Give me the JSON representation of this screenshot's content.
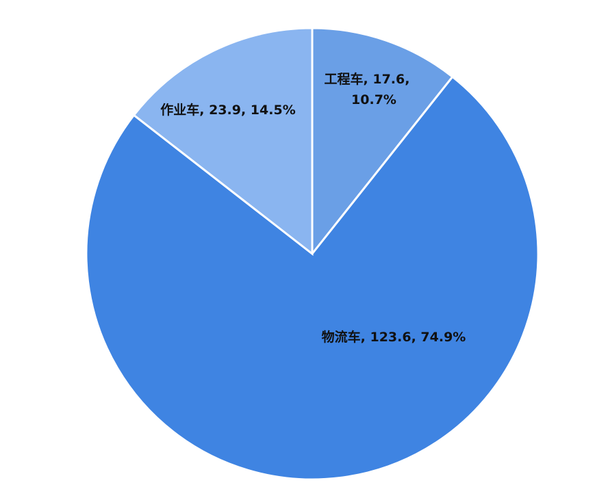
{
  "chart_data": {
    "type": "pie",
    "start": "top",
    "direction": "clockwise",
    "slices": [
      {
        "category": "工程车",
        "value": 17.6,
        "percent": "10.7%",
        "label_lines": [
          "工程车, 17.6,",
          "10.7%"
        ],
        "color": "#6a9fe6"
      },
      {
        "category": "物流车",
        "value": 123.6,
        "percent": "74.9%",
        "label_lines": [
          "物流车, 123.6, 74.9%"
        ],
        "color": "#3f84e2"
      },
      {
        "category": "作业车",
        "value": 23.9,
        "percent": "14.5%",
        "label_lines": [
          "作业车, 23.9, 14.5%"
        ],
        "color": "#8ab5f0"
      }
    ],
    "slice_border_color": "#ffffff"
  }
}
